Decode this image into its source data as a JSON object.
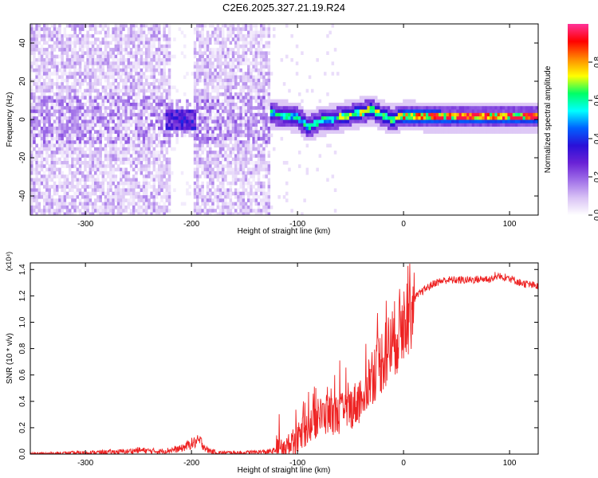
{
  "chart_data": [
    {
      "type": "heatmap",
      "title": "C2E6.2025.327.21.19.R24",
      "xlabel": "Height of straight line (km)",
      "ylabel": "Frequency (Hz)",
      "xlim": [
        -352,
        127
      ],
      "ylim": [
        -50,
        50
      ],
      "xticks": [
        -300,
        -200,
        -100,
        0,
        100
      ],
      "yticks": [
        -40,
        -20,
        0,
        20,
        40
      ],
      "colorbar": {
        "label": "Normalized spectral amplitude",
        "range": [
          0,
          1
        ],
        "ticks": [
          0.0,
          0.2,
          0.4,
          0.6,
          0.8
        ],
        "tick_labels": [
          "0.0",
          "0.2",
          "0.4",
          "0.6",
          "0.8"
        ],
        "colormap": [
          "#ffffff",
          "#d9c2f5",
          "#a070e8",
          "#6a22d6",
          "#2a10d8",
          "#0060ff",
          "#00ffff",
          "#00ff66",
          "#ffff00",
          "#ff8800",
          "#ff0000",
          "#ff3399"
        ]
      },
      "features": {
        "noise_regions_x": [
          [
            -352,
            -220
          ],
          [
            -198,
            -125
          ]
        ],
        "gap_x": [
          -220,
          -198
        ],
        "cluster_x": [
          -225,
          -195
        ],
        "signal_track": [
          {
            "x": -125,
            "f": 3
          },
          {
            "x": -100,
            "f": 1
          },
          {
            "x": -90,
            "f": -4
          },
          {
            "x": -80,
            "f": -1
          },
          {
            "x": -60,
            "f": 1
          },
          {
            "x": -45,
            "f": 3
          },
          {
            "x": -30,
            "f": 5
          },
          {
            "x": -20,
            "f": 2
          },
          {
            "x": -10,
            "f": 0
          },
          {
            "x": 0,
            "f": 2
          },
          {
            "x": 40,
            "f": 1
          },
          {
            "x": 127,
            "f": 1
          }
        ]
      }
    },
    {
      "type": "line",
      "xlabel": "Height of straight line (km)",
      "ylabel": "SNR (10 * v/v)",
      "y_multiplier": "(x10⁴)",
      "xlim": [
        -352,
        127
      ],
      "ylim": [
        0,
        1.45
      ],
      "xticks": [
        -300,
        -200,
        -100,
        0,
        100
      ],
      "yticks": [
        0.0,
        0.2,
        0.4,
        0.6,
        0.8,
        1.0,
        1.2,
        1.4
      ],
      "ytick_labels": [
        "0.0",
        "0.2",
        "0.4",
        "0.6",
        "0.8",
        "1.0",
        "1.2",
        "1.4"
      ],
      "series": [
        {
          "color": "#ee2222",
          "x": [
            -352,
            -300,
            -260,
            -250,
            -230,
            -210,
            -200,
            -192,
            -185,
            -175,
            -150,
            -125,
            -110,
            -100,
            -90,
            -80,
            -70,
            -60,
            -50,
            -40,
            -30,
            -20,
            -10,
            0,
            5,
            10,
            20,
            30,
            40,
            60,
            80,
            95,
            110,
            127
          ],
          "y": [
            0.0,
            0.01,
            0.02,
            0.03,
            0.02,
            0.04,
            0.08,
            0.1,
            0.03,
            0.01,
            0.01,
            0.02,
            0.05,
            0.12,
            0.2,
            0.28,
            0.3,
            0.3,
            0.35,
            0.42,
            0.6,
            0.72,
            0.85,
            1.0,
            1.1,
            1.18,
            1.25,
            1.3,
            1.32,
            1.32,
            1.33,
            1.35,
            1.3,
            1.27
          ]
        }
      ]
    }
  ]
}
